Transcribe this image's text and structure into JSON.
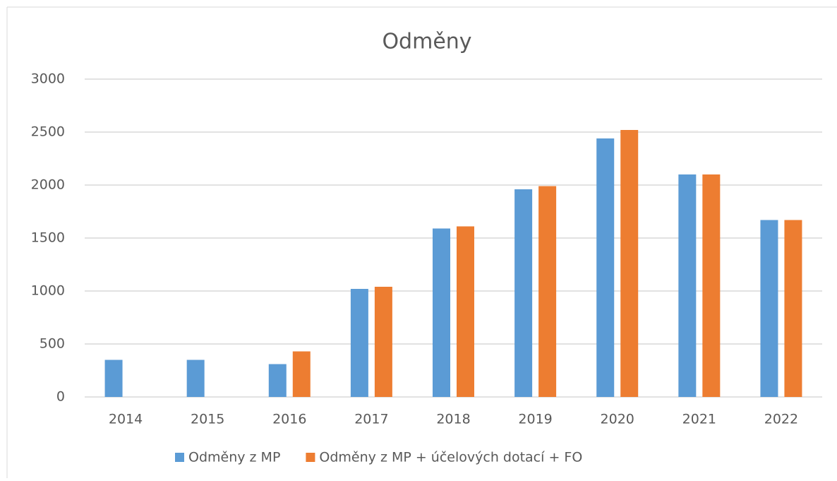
{
  "chart_data": {
    "type": "bar",
    "title": "Odměny",
    "categories": [
      "2014",
      "2015",
      "2016",
      "2017",
      "2018",
      "2019",
      "2020",
      "2021",
      "2022"
    ],
    "series": [
      {
        "name": "Odměny z MP",
        "color": "#5b9bd5",
        "values": [
          350,
          350,
          310,
          1020,
          1590,
          1960,
          2440,
          2100,
          1670
        ]
      },
      {
        "name": "Odměny z MP + účelových dotací + FO",
        "color": "#ed7d31",
        "values": [
          0,
          0,
          430,
          1040,
          1610,
          1990,
          2520,
          2100,
          1670
        ]
      }
    ],
    "ylim": [
      0,
      3000
    ],
    "yticks": [
      0,
      500,
      1000,
      1500,
      2000,
      2500,
      3000
    ],
    "grid": true,
    "legend": "bottom"
  }
}
